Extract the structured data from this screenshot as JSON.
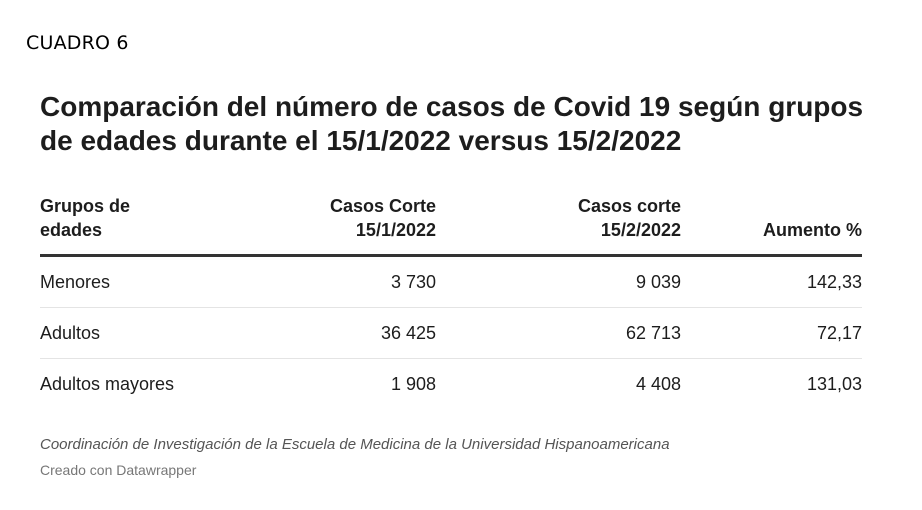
{
  "header": {
    "label": "CUADRO 6"
  },
  "chart_data": {
    "type": "table",
    "title": "Comparación del número de casos de Covid 19 según grupos de edades durante el 15/1/2022 versus 15/2/2022",
    "columns": [
      {
        "line1": "Grupos de",
        "line2": "edades"
      },
      {
        "line1": "Casos Corte",
        "line2": "15/1/2022"
      },
      {
        "line1": "Casos corte",
        "line2": "15/2/2022"
      },
      {
        "line1": "",
        "line2": "Aumento %"
      }
    ],
    "rows": [
      [
        "Menores",
        "3 730",
        "9 039",
        "142,33"
      ],
      [
        "Adultos",
        "36 425",
        "62 713",
        "72,17"
      ],
      [
        "Adultos mayores",
        "1 908",
        "4 408",
        "131,03"
      ]
    ],
    "notes": "Coordinación de Investigación de la Escuela de Medicina de la Universidad Hispanoamericana"
  },
  "footer": {
    "credit": "Creado con Datawrapper"
  }
}
